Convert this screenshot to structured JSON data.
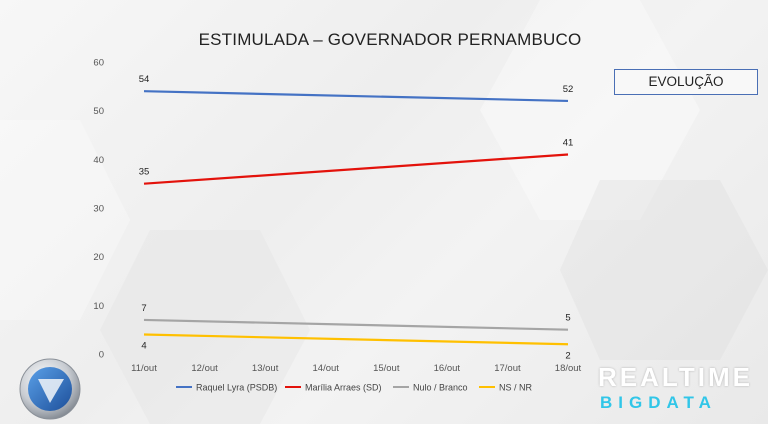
{
  "title": "ESTIMULADA – GOVERNADOR PERNAMBUCO",
  "evolution_label": "EVOLUÇÃO",
  "brand": {
    "line1": "REALTIME",
    "line2": "BIGDATA"
  },
  "chart_data": {
    "type": "line",
    "title": "ESTIMULADA – GOVERNADOR PERNAMBUCO",
    "categories": [
      "11/out",
      "12/out",
      "13/out",
      "14/out",
      "15/out",
      "16/out",
      "17/out",
      "18/out"
    ],
    "ylim": [
      0,
      60
    ],
    "yticks": [
      0,
      10,
      20,
      30,
      40,
      50,
      60
    ],
    "grid": false,
    "legend_position": "bottom",
    "series": [
      {
        "name": "Raquel Lyra (PSDB)",
        "color": "#4472c4",
        "points": [
          {
            "x": "11/out",
            "y": 54
          },
          {
            "x": "18/out",
            "y": 52
          }
        ]
      },
      {
        "name": "Marília Arraes (SD)",
        "color": "#e3120b",
        "points": [
          {
            "x": "11/out",
            "y": 35
          },
          {
            "x": "18/out",
            "y": 41
          }
        ]
      },
      {
        "name": "Nulo / Branco",
        "color": "#a5a5a5",
        "points": [
          {
            "x": "11/out",
            "y": 7
          },
          {
            "x": "18/out",
            "y": 5
          }
        ]
      },
      {
        "name": "NS / NR",
        "color": "#ffc000",
        "points": [
          {
            "x": "11/out",
            "y": 4
          },
          {
            "x": "18/out",
            "y": 2
          }
        ]
      }
    ]
  }
}
